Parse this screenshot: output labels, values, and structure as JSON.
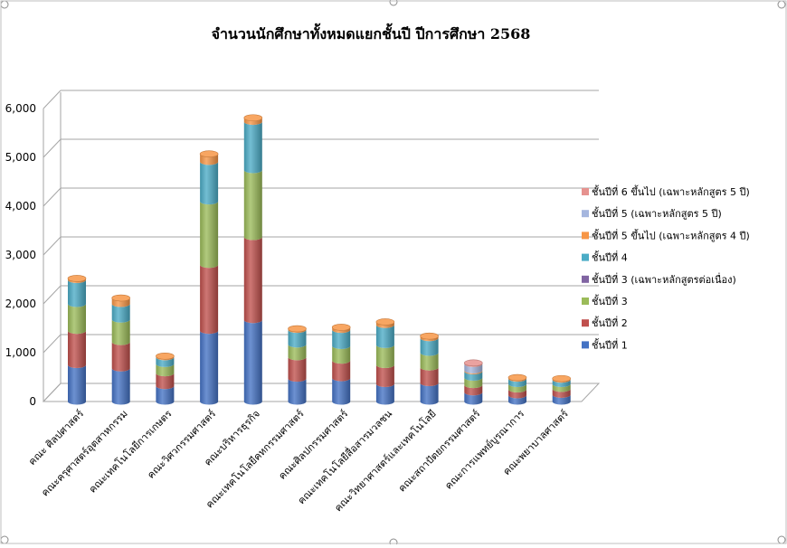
{
  "chart_data": {
    "type": "bar",
    "stacked": true,
    "style": "3d-cylinder",
    "title": "จำนวนนักศึกษาทั้งหมดแยกชั้นปี  ปีการศึกษา 2568",
    "xlabel": "",
    "ylabel": "",
    "ylim": [
      0,
      6000
    ],
    "yticks": [
      0,
      1000,
      2000,
      3000,
      4000,
      5000,
      6000
    ],
    "ytick_labels": [
      "0",
      "1,000",
      "2,000",
      "3,000",
      "4,000",
      "5,000",
      "6,000"
    ],
    "grid": true,
    "legend_position": "right",
    "categories": [
      "คณะ ศิลปศาสตร์",
      "คณะครุศาสตร์อุตสาหกรรม",
      "คณะเทคโนโลยีการเกษตร",
      "คณะวิศวกรรมศาสตร์",
      "คณะบริหารธุรกิจ",
      "คณะเทคโนโลยีคหกรรมศาสตร์",
      "คณะศิลปกรรมศาสตร์",
      "คณะเทคโนโลยีสื่อสารมวลชน",
      "คณะวิทยาศาสตร์และเทคโนโลยี",
      "คณะสถาปัตยกรรมศาสตร์",
      "คณะการแพทย์บูรณาการ",
      "คณะพยาบาลศาสตร์"
    ],
    "series": [
      {
        "name": "ชั้นปีที่ 1",
        "color": "#4472C4",
        "values": [
          750,
          680,
          320,
          1450,
          1670,
          470,
          480,
          360,
          380,
          190,
          130,
          140
        ]
      },
      {
        "name": "ชั้นปีที่ 2",
        "color": "#C0504D",
        "values": [
          700,
          540,
          260,
          1350,
          1700,
          440,
          360,
          390,
          320,
          150,
          120,
          120
        ]
      },
      {
        "name": "ชั้นปีที่ 3",
        "color": "#9BBB59",
        "values": [
          550,
          460,
          190,
          1300,
          1370,
          260,
          300,
          410,
          300,
          150,
          110,
          100
        ]
      },
      {
        "name": "ชั้นปีที่ 3  (เฉพาะหลักสูตรต่อเนื่อง)",
        "color": "#8064A2",
        "values": [
          0,
          0,
          0,
          0,
          0,
          0,
          0,
          0,
          0,
          0,
          0,
          0
        ]
      },
      {
        "name": "ชั้นปีที่ 4",
        "color": "#4BACC6",
        "values": [
          490,
          320,
          140,
          810,
          990,
          300,
          330,
          410,
          300,
          130,
          110,
          90
        ]
      },
      {
        "name": "ชั้นปีที่ 5 ขึ้นไป  (เฉพาะหลักสูตร 4 ปี)",
        "color": "#F79646",
        "values": [
          30,
          120,
          20,
          160,
          80,
          20,
          50,
          60,
          40,
          20,
          20,
          20
        ]
      },
      {
        "name": "ชั้นปีที่ 5 (เฉพาะหลักสูตร 5 ปี)",
        "color": "#A5B6DE",
        "values": [
          0,
          0,
          0,
          0,
          0,
          0,
          0,
          0,
          0,
          130,
          0,
          0
        ]
      },
      {
        "name": "ชั้นปีที่ 6 ขึ้นไป  (เฉพาะหลักสูตร 5 ปี)",
        "color": "#E6928F",
        "values": [
          0,
          0,
          0,
          0,
          0,
          0,
          0,
          0,
          0,
          20,
          0,
          0
        ]
      }
    ]
  }
}
